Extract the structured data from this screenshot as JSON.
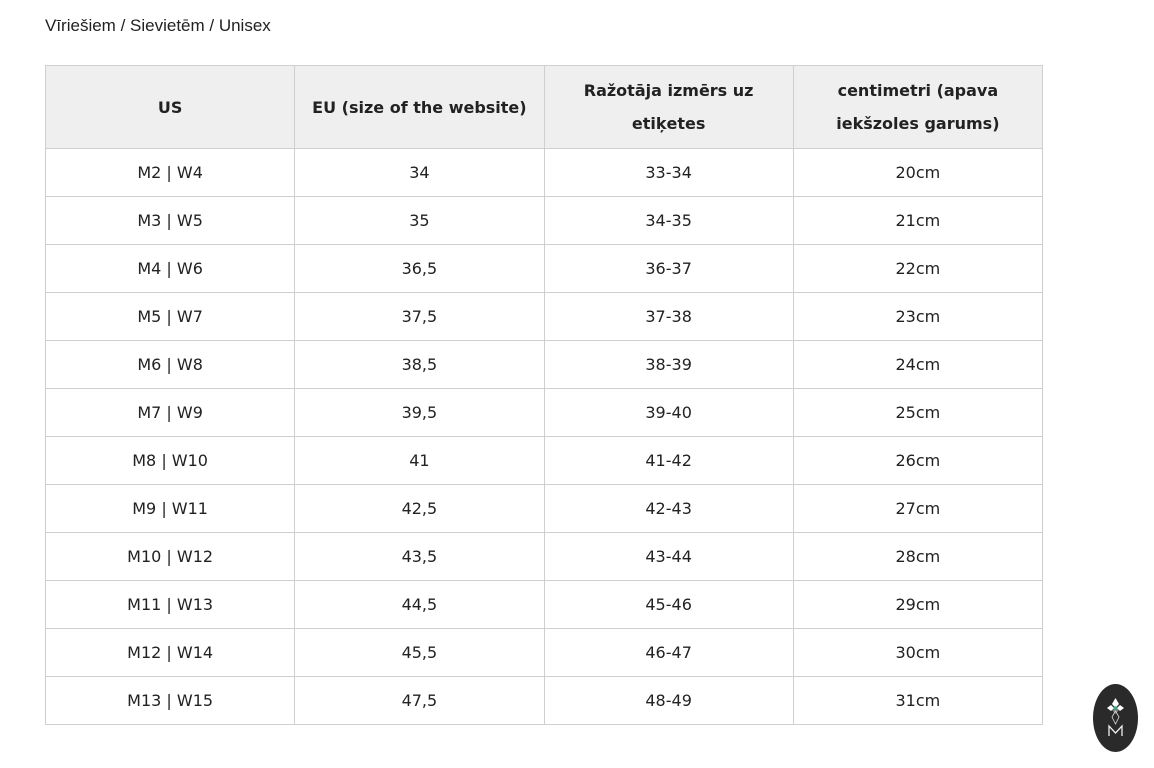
{
  "caption": "Vīriešiem / Sievietēm / Unisex",
  "table": {
    "headers": [
      "US",
      "EU (size of the website)",
      "Ražotāja izmērs uz etiķetes",
      "centimetri (apava iekšzoles garums)"
    ],
    "rows": [
      [
        "M2 | W4",
        "34",
        "33-34",
        "20cm"
      ],
      [
        "M3 | W5",
        "35",
        "34-35",
        "21cm"
      ],
      [
        "M4 | W6",
        "36,5",
        "36-37",
        "22cm"
      ],
      [
        "M5 | W7",
        "37,5",
        "37-38",
        "23cm"
      ],
      [
        "M6 | W8",
        "38,5",
        "38-39",
        "24cm"
      ],
      [
        "M7 | W9",
        "39,5",
        "39-40",
        "25cm"
      ],
      [
        "M8 | W10",
        "41",
        "41-42",
        "26cm"
      ],
      [
        "M9 | W11",
        "42,5",
        "42-43",
        "27cm"
      ],
      [
        "M10 | W12",
        "43,5",
        "43-44",
        "28cm"
      ],
      [
        "M11 | W13",
        "44,5",
        "45-46",
        "29cm"
      ],
      [
        "M12 | W14",
        "45,5",
        "46-47",
        "30cm"
      ],
      [
        "M13 | W15",
        "47,5",
        "48-49",
        "31cm"
      ]
    ]
  },
  "logo": {
    "icon": "brand-logo-icon",
    "letter": "M",
    "bg": "#2a2a2a",
    "accent": "#3aa58a"
  }
}
